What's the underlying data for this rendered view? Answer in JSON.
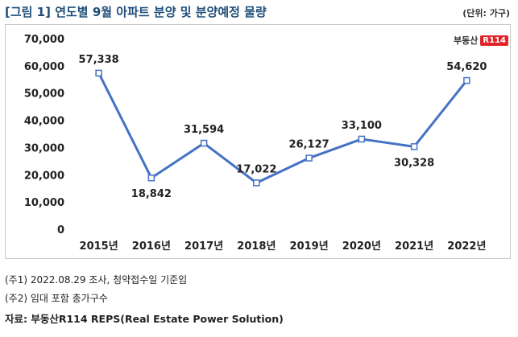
{
  "title": "[그림 1] 연도별 9월 아파트 분양 및 분양예정 물량",
  "unit": "(단위: 가구)",
  "logo": {
    "text": "부동산",
    "badge": "R114"
  },
  "colors": {
    "line": "#4472c4",
    "title": "#1f4e79",
    "logo_red": "#e0242a"
  },
  "chart_data": {
    "type": "line",
    "title": "",
    "xlabel": "",
    "ylabel": "",
    "categories": [
      "2015년",
      "2016년",
      "2017년",
      "2018년",
      "2019년",
      "2020년",
      "2021년",
      "2022년"
    ],
    "series": [
      {
        "values": [
          57338,
          18842,
          31594,
          17022,
          26127,
          33100,
          30328,
          54620
        ]
      }
    ],
    "data_labels": [
      "57,338",
      "18,842",
      "31,594",
      "17,022",
      "26,127",
      "33,100",
      "30,328",
      "54,620"
    ],
    "label_positions": [
      "above",
      "below",
      "above",
      "above",
      "above",
      "above",
      "below",
      "above"
    ],
    "ylim": [
      0,
      70000
    ],
    "yticks": [
      0,
      10000,
      20000,
      30000,
      40000,
      50000,
      60000,
      70000
    ],
    "ytick_labels": [
      "0",
      "10,000",
      "20,000",
      "30,000",
      "40,000",
      "50,000",
      "60,000",
      "70,000"
    ],
    "grid": false,
    "legend": "none"
  },
  "notes": {
    "n1": "(주1) 2022.08.29 조사, 청약접수일 기준임",
    "n2": "(주2) 임대 포함 총가구수",
    "source": "자료: 부동산R114 REPS(Real Estate Power Solution)"
  }
}
